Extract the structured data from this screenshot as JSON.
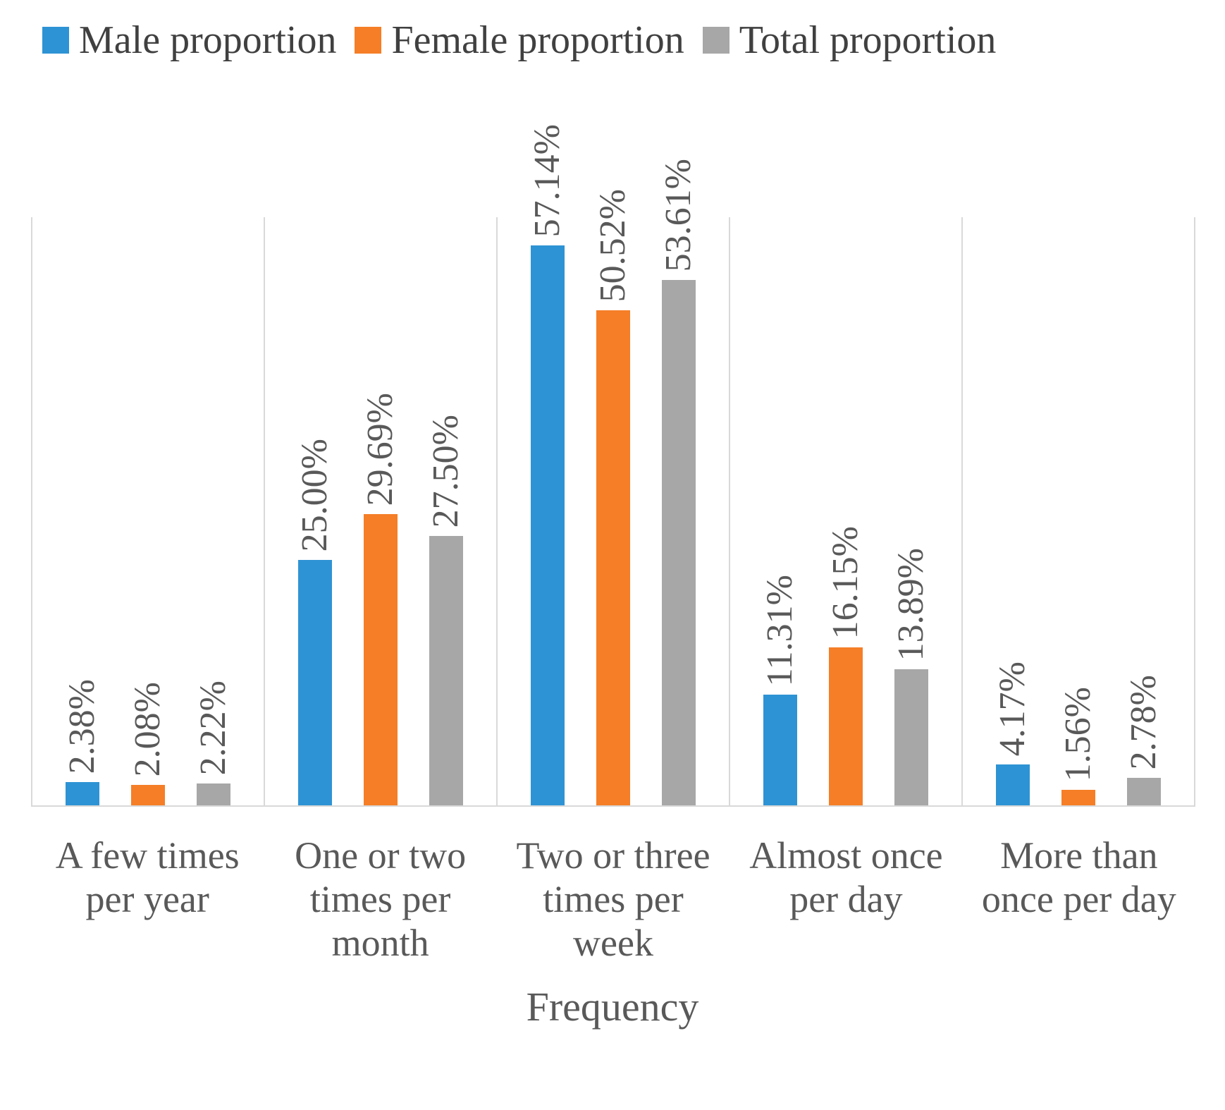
{
  "chart_data": {
    "type": "bar",
    "title": "",
    "xlabel": "Frequency",
    "ylabel": "",
    "ylim": [
      0,
      60
    ],
    "grid": "vertical-category-separators-only",
    "legend_position": "top-left",
    "value_label_style": "rotated-90-above-bars",
    "categories": [
      "A few times per year",
      "One or two times per month",
      "Two or three times per week",
      "Almost once per day",
      "More than once per day"
    ],
    "series": [
      {
        "name": "Male proportion",
        "color": "#2e93d4",
        "values": [
          2.38,
          25.0,
          57.14,
          11.31,
          4.17
        ],
        "labels": [
          "2.38%",
          "25.00%",
          "57.14%",
          "11.31%",
          "4.17%"
        ]
      },
      {
        "name": "Female proportion",
        "color": "#f57e27",
        "values": [
          2.08,
          29.69,
          50.52,
          16.15,
          1.56
        ],
        "labels": [
          "2.08%",
          "29.69%",
          "50.52%",
          "16.15%",
          "1.56%"
        ]
      },
      {
        "name": "Total proportion",
        "color": "#a8a7a7",
        "values": [
          2.22,
          27.5,
          53.61,
          13.89,
          2.78
        ],
        "labels": [
          "2.22%",
          "27.50%",
          "53.61%",
          "13.89%",
          "2.78%"
        ]
      }
    ],
    "colors": {
      "text": "#595959",
      "legend_text": "#404040",
      "gridline": "#d9d9d9",
      "background": "#ffffff"
    }
  }
}
